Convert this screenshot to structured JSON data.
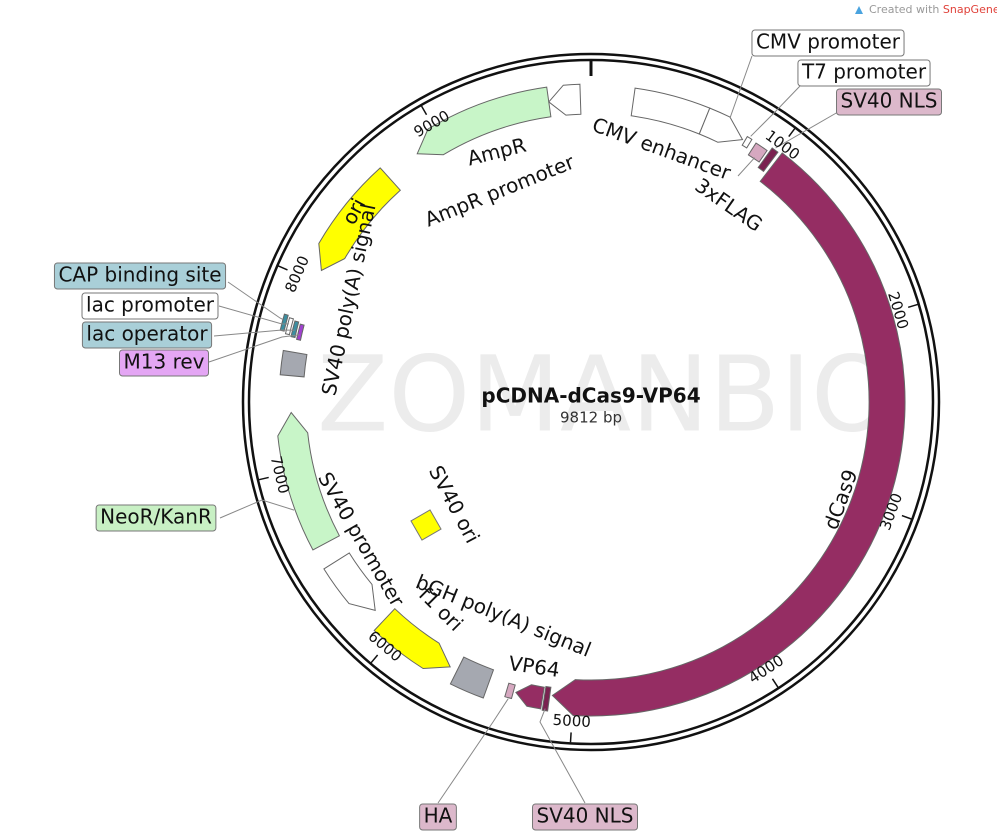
{
  "branding": {
    "prefix": "Created with",
    "brand": "SnapGene",
    "suffix": "®"
  },
  "map": {
    "watermark": "ZOMANBIO",
    "title": "pCDNA-dCas9-VP64",
    "length": {
      "value": 9812,
      "label": "9812 bp"
    },
    "ticks": [
      1000,
      2000,
      3000,
      4000,
      5000,
      6000,
      7000,
      8000,
      9000
    ]
  },
  "features": [
    "CMV promoter",
    "T7 promoter",
    "SV40 NLS",
    "CMV enhancer",
    "3xFLAG",
    "dCas9",
    "VP64",
    "SV40 NLS",
    "HA",
    "bGH poly(A) signal",
    "f1 ori",
    "SV40 promoter",
    "SV40 ori",
    "NeoR/KanR",
    "M13 rev",
    "lac operator",
    "lac promoter",
    "CAP binding site",
    "SV40 poly(A) signal",
    "ori",
    "AmpR",
    "AmpR promoter"
  ]
}
